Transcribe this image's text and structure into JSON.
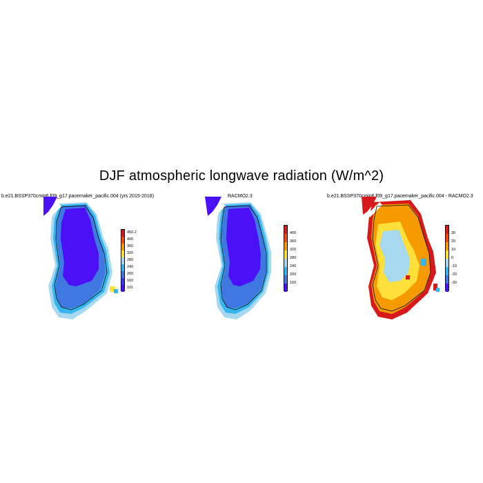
{
  "title": "DJF atmospheric longwave radiation (W/m^2)",
  "panels": [
    {
      "subtitle": "b.e21.BSSP370cmip6.f09_g17.pacemaker_pacific.004 (yrs 2015-2018)",
      "colorbar": {
        "labels": [
          "450.2",
          "400",
          "360",
          "320",
          "280",
          "240",
          "200",
          "160",
          "101"
        ],
        "colors": [
          "#d7191c",
          "#f04a0f",
          "#f59a00",
          "#ffe03a",
          "#a6d8f0",
          "#35b6ef",
          "#3f78e0",
          "#3a3af0",
          "#4b10f5"
        ]
      }
    },
    {
      "subtitle": "RACMO2.3",
      "colorbar": {
        "labels": [
          "400",
          "360",
          "320",
          "280",
          "240",
          "200",
          "160"
        ],
        "colors": [
          "#d7191c",
          "#f04a0f",
          "#f59a00",
          "#ffe03a",
          "#a6d8f0",
          "#35b6ef",
          "#3f78e0",
          "#4b10f5"
        ]
      }
    },
    {
      "subtitle": "b.e21.BSSP370cmip6.f09_g17.pacemaker_pacific.004 - RACMO2.3",
      "colorbar": {
        "labels": [
          "30",
          "20",
          "10",
          "0",
          "-10",
          "-20",
          "-30"
        ],
        "colors": [
          "#d7191c",
          "#f04a0f",
          "#f59a00",
          "#ffe03a",
          "#a6d8f0",
          "#35b6ef",
          "#3f78e0",
          "#4b10f5"
        ]
      }
    }
  ]
}
